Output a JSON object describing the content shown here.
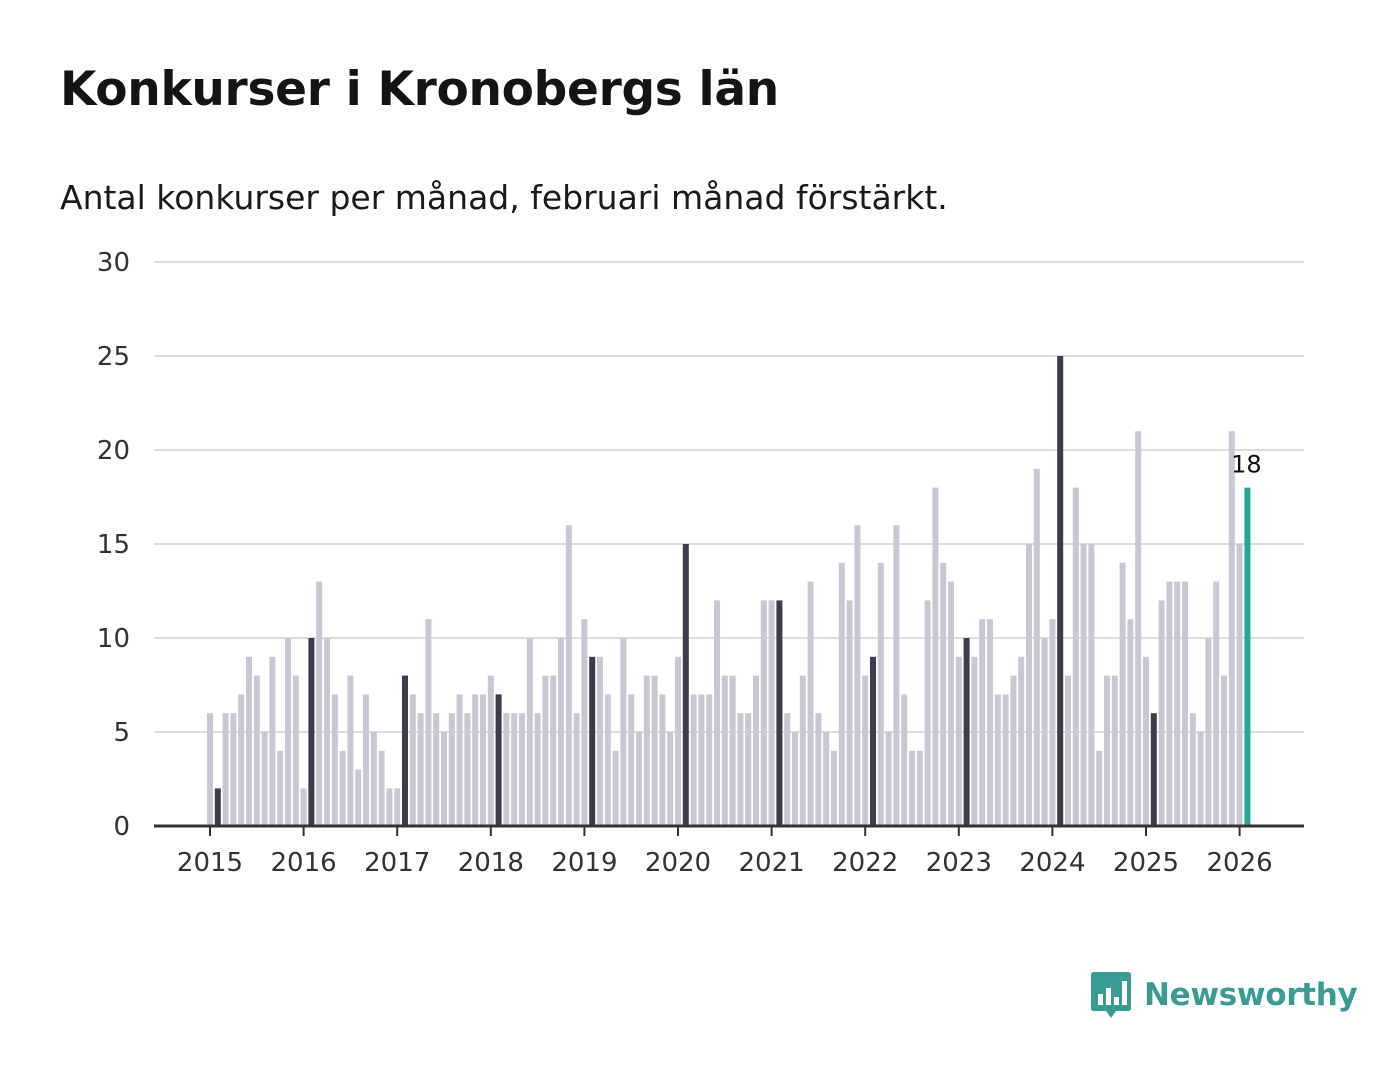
{
  "chart_data": {
    "type": "bar",
    "title": "Konkurser i Kronobergs län",
    "subtitle": "Antal konkurser per månad, februari månad förstärkt.",
    "xlabel": "",
    "ylabel": "",
    "ylim": [
      0,
      30
    ],
    "yticks": [
      0,
      5,
      10,
      15,
      20,
      25,
      30
    ],
    "xticks": [
      "2015",
      "2016",
      "2017",
      "2018",
      "2019",
      "2020",
      "2021",
      "2022",
      "2023",
      "2024",
      "2025",
      "2026"
    ],
    "grid": true,
    "start_year": 2015,
    "highlight_month": "februari",
    "values": [
      6,
      2,
      6,
      6,
      7,
      9,
      8,
      5,
      9,
      4,
      10,
      8,
      2,
      10,
      13,
      10,
      7,
      4,
      8,
      3,
      7,
      5,
      4,
      2,
      2,
      8,
      7,
      6,
      11,
      6,
      5,
      6,
      7,
      6,
      7,
      7,
      8,
      7,
      6,
      6,
      6,
      10,
      6,
      8,
      8,
      10,
      16,
      6,
      11,
      9,
      9,
      7,
      4,
      10,
      7,
      5,
      8,
      8,
      7,
      5,
      9,
      15,
      7,
      7,
      7,
      12,
      8,
      8,
      6,
      6,
      8,
      12,
      12,
      12,
      6,
      5,
      8,
      13,
      6,
      5,
      4,
      14,
      12,
      16,
      8,
      9,
      14,
      5,
      16,
      7,
      4,
      4,
      12,
      18,
      14,
      13,
      9,
      10,
      9,
      11,
      11,
      7,
      7,
      8,
      9,
      15,
      19,
      10,
      11,
      25,
      8,
      18,
      15,
      15,
      4,
      8,
      8,
      14,
      11,
      21,
      9,
      6,
      12,
      13,
      13,
      13,
      6,
      5,
      10,
      13,
      8,
      21,
      15,
      18
    ],
    "latest_label": "18",
    "colors": {
      "regular": "#c8c7d3",
      "february": "#3d3b4d",
      "latest": "#21a89b",
      "grid": "#dcdcdc",
      "axis": "#333333"
    }
  },
  "brand": {
    "name": "Newsworthy",
    "color": "#3a9b95"
  }
}
